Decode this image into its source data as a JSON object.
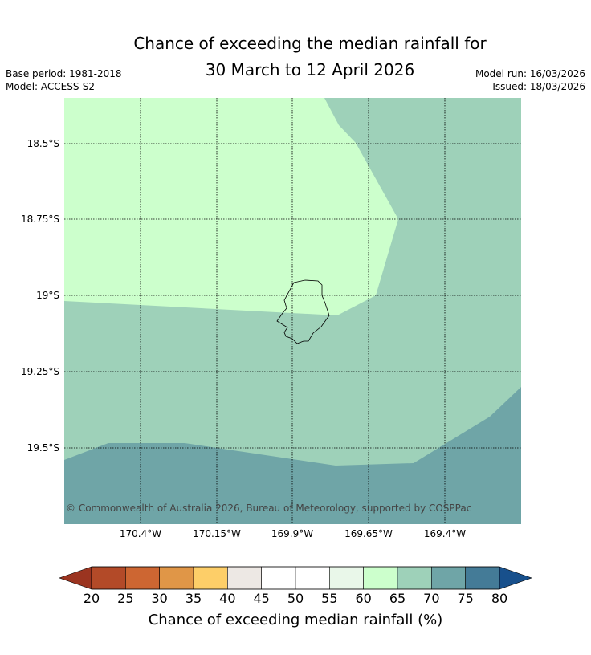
{
  "title_line1": "Chance of exceeding the median rainfall for",
  "title_line2": "30 March to 12 April 2026",
  "base_period": "Base period: 1981-2018",
  "model": "Model: ACCESS-S2",
  "model_run": "Model run: 16/03/2026",
  "issued": "Issued: 18/03/2026",
  "copyright": "© Commonwealth of Australia 2026, Bureau of Meteorology, supported by COSPPac",
  "lat_labels": [
    "18.5°S",
    "18.75°S",
    "19°S",
    "19.25°S",
    "19.5°S"
  ],
  "lon_labels": [
    "170.4°W",
    "170.15°W",
    "169.9°W",
    "169.65°W",
    "169.4°W"
  ],
  "colorbar": {
    "title": "Chance of exceeding median rainfall (%)",
    "ticks": [
      "20",
      "25",
      "30",
      "35",
      "40",
      "45",
      "50",
      "55",
      "60",
      "65",
      "70",
      "75",
      "80"
    ],
    "colors": [
      "#9b3420",
      "#b34a28",
      "#cd6632",
      "#e09647",
      "#fdce68",
      "#ede8e4",
      "#ffffff",
      "#ffffff",
      "#e9f7e9",
      "#ccffcc",
      "#9ed1b9",
      "#6fa5a7",
      "#447b97"
    ],
    "under_color": "#9b3420",
    "over_color": "#18508c"
  },
  "map": {
    "region_colors": {
      "60-65": "#ccffcc",
      "65-70": "#9ed1b9",
      "70-75": "#6fa5a7"
    },
    "land_name_hidden": true
  }
}
